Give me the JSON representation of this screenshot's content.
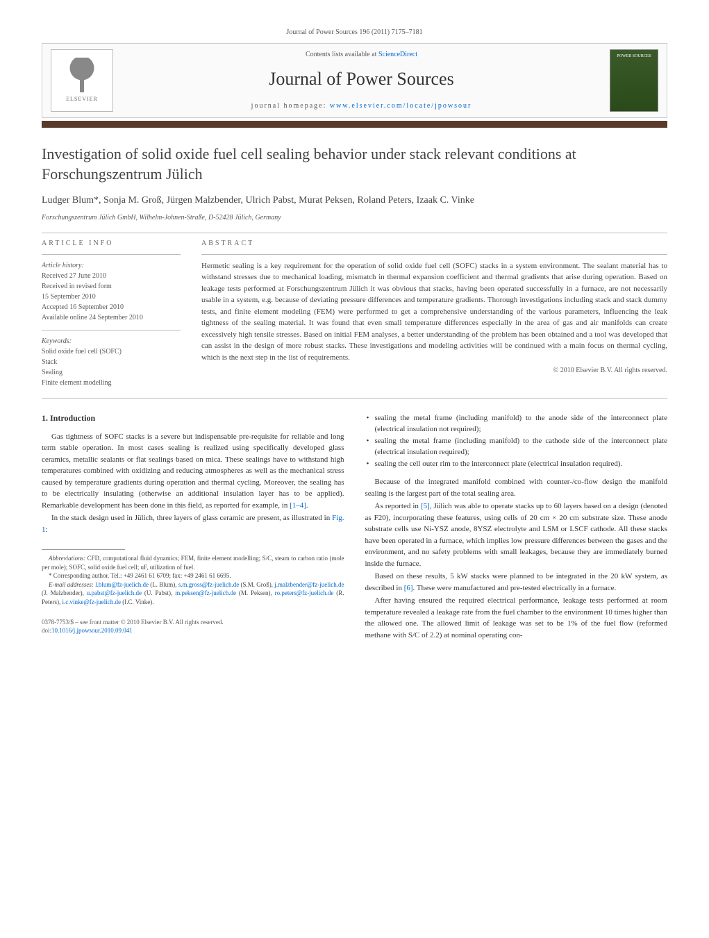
{
  "journal_citation": "Journal of Power Sources 196 (2011) 7175–7181",
  "banner": {
    "elsevier": "ELSEVIER",
    "contents_prefix": "Contents lists available at ",
    "contents_link": "ScienceDirect",
    "journal_name": "Journal of Power Sources",
    "homepage_prefix": "journal homepage: ",
    "homepage_link": "www.elsevier.com/locate/jpowsour",
    "cover_text": "POWER SOURCES"
  },
  "title": "Investigation of solid oxide fuel cell sealing behavior under stack relevant conditions at Forschungszentrum Jülich",
  "authors": "Ludger Blum*, Sonja M. Groß, Jürgen Malzbender, Ulrich Pabst, Murat Peksen, Roland Peters, Izaak C. Vinke",
  "affiliation": "Forschungszentrum Jülich GmbH, Wilhelm-Johnen-Straße, D-52428 Jülich, Germany",
  "info": {
    "label": "ARTICLE INFO",
    "history_title": "Article history:",
    "history": [
      "Received 27 June 2010",
      "Received in revised form",
      "15 September 2010",
      "Accepted 16 September 2010",
      "Available online 24 September 2010"
    ],
    "keywords_title": "Keywords:",
    "keywords": [
      "Solid oxide fuel cell (SOFC)",
      "Stack",
      "Sealing",
      "Finite element modelling"
    ]
  },
  "abstract": {
    "label": "ABSTRACT",
    "text": "Hermetic sealing is a key requirement for the operation of solid oxide fuel cell (SOFC) stacks in a system environment. The sealant material has to withstand stresses due to mechanical loading, mismatch in thermal expansion coefficient and thermal gradients that arise during operation. Based on leakage tests performed at Forschungszentrum Jülich it was obvious that stacks, having been operated successfully in a furnace, are not necessarily usable in a system, e.g. because of deviating pressure differences and temperature gradients. Thorough investigations including stack and stack dummy tests, and finite element modeling (FEM) were performed to get a comprehensive understanding of the various parameters, influencing the leak tightness of the sealing material. It was found that even small temperature differences especially in the area of gas and air manifolds can create excessively high tensile stresses. Based on initial FEM analyses, a better understanding of the problem has been obtained and a tool was developed that can assist in the design of more robust stacks. These investigations and modeling activities will be continued with a main focus on thermal cycling, which is the next step in the list of requirements.",
    "copyright": "© 2010 Elsevier B.V. All rights reserved."
  },
  "body": {
    "intro_heading": "1. Introduction",
    "col1_p1": "Gas tightness of SOFC stacks is a severe but indispensable pre-requisite for reliable and long term stable operation. In most cases sealing is realized using specifically developed glass ceramics, metallic sealants or flat sealings based on mica. These sealings have to withstand high temperatures combined with oxidizing and reducing atmospheres as well as the mechanical stress caused by temperature gradients during operation and thermal cycling. Moreover, the sealing has to be electrically insulating (otherwise an additional insulation layer has to be applied). Remarkable development has been done in this field, as reported for example, in ",
    "col1_ref1": "[1–4]",
    "col1_p1_end": ".",
    "col1_p2": "In the stack design used in Jülich, three layers of glass ceramic are present, as illustrated in ",
    "col1_ref2": "Fig. 1",
    "col1_p2_end": ":",
    "bullets": [
      "sealing the metal frame (including manifold) to the anode side of the interconnect plate (electrical insulation not required);",
      "sealing the metal frame (including manifold) to the cathode side of the interconnect plate (electrical insulation required);",
      "sealing the cell outer rim to the interconnect plate (electrical insulation required)."
    ],
    "col2_p1": "Because of the integrated manifold combined with counter-/co-flow design the manifold sealing is the largest part of the total sealing area.",
    "col2_p2a": "As reported in ",
    "col2_ref3": "[5]",
    "col2_p2b": ", Jülich was able to operate stacks up to 60 layers based on a design (denoted as F20), incorporating these features, using cells of 20 cm × 20 cm substrate size. These anode substrate cells use Ni-YSZ anode, 8YSZ electrolyte and LSM or LSCF cathode. All these stacks have been operated in a furnace, which implies low pressure differences between the gases and the environment, and no safety problems with small leakages, because they are immediately burned inside the furnace.",
    "col2_p3a": "Based on these results, 5 kW stacks were planned to be integrated in the 20 kW system, as described in ",
    "col2_ref4": "[6]",
    "col2_p3b": ". These were manufactured and pre-tested electrically in a furnace.",
    "col2_p4": "After having ensured the required electrical performance, leakage tests performed at room temperature revealed a leakage rate from the fuel chamber to the environment 10 times higher than the allowed one. The allowed limit of leakage was set to be 1% of the fuel flow (reformed methane with S/C of 2.2) at nominal operating con-"
  },
  "footnotes": {
    "abbrev_label": "Abbreviations:",
    "abbrev_text": " CFD, computational fluid dynamics; FEM, finite element modelling; S/C, steam to carbon ratio (mole per mole); SOFC, solid oxide fuel cell; uF, utilization of fuel.",
    "corr_label": "* Corresponding author. ",
    "corr_text": "Tel.: +49 2461 61 6709; fax: +49 2461 61 6695.",
    "email_label": "E-mail addresses: ",
    "emails": [
      {
        "addr": "l.blum@fz-juelich.de",
        "who": " (L. Blum), "
      },
      {
        "addr": "s.m.gross@fz-juelich.de",
        "who": " (S.M. Groß), "
      },
      {
        "addr": "j.malzbender@fz-juelich.de",
        "who": " (J. Malzbender), "
      },
      {
        "addr": "u.pabst@fz-juelich.de",
        "who": " (U. Pabst), "
      },
      {
        "addr": "m.peksen@fz-juelich.de",
        "who": " (M. Peksen), "
      },
      {
        "addr": "ro.peters@fz-juelich.de",
        "who": " (R. Peters), "
      },
      {
        "addr": "i.c.vinke@fz-juelich.de",
        "who": " (I.C. Vinke)."
      }
    ]
  },
  "bottom": {
    "issn": "0378-7753/$ – see front matter © 2010 Elsevier B.V. All rights reserved.",
    "doi_label": "doi:",
    "doi": "10.1016/j.jpowsour.2010.09.041"
  },
  "colors": {
    "link": "#0066cc",
    "brown_bar": "#5a3a2a",
    "text": "#333333",
    "muted": "#555555"
  }
}
